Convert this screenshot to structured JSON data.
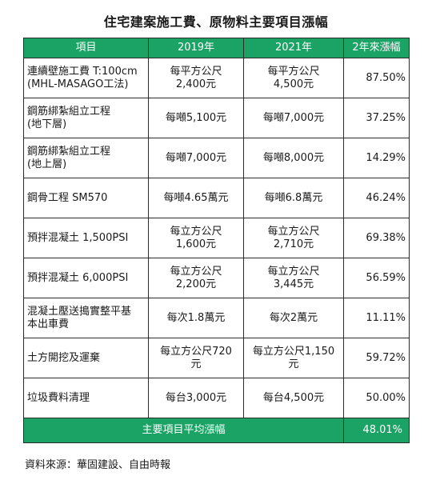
{
  "title": "住宅建案施工費、原物料主要項目漲幅",
  "table": {
    "headers": [
      "項目",
      "2019年",
      "2021年",
      "2年來漲幅"
    ],
    "rows": [
      {
        "item": [
          "連續壁施工費 T:100cm",
          "(MHL-MASAGO工法)"
        ],
        "y2019": [
          "每平方公尺",
          "2,400元"
        ],
        "y2021": [
          "每平方公尺",
          "4,500元"
        ],
        "rate": "87.50%"
      },
      {
        "item": [
          "鋼筋綁紮組立工程",
          "(地下層)"
        ],
        "y2019": [
          "每噸5,100元"
        ],
        "y2021": [
          "每噸7,000元"
        ],
        "rate": "37.25%"
      },
      {
        "item": [
          "鋼筋綁紮組立工程",
          "(地上層)"
        ],
        "y2019": [
          "每噸7,000元"
        ],
        "y2021": [
          "每噸8,000元"
        ],
        "rate": "14.29%"
      },
      {
        "item": [
          "鋼骨工程 SM570"
        ],
        "y2019": [
          "每噸4.65萬元"
        ],
        "y2021": [
          "每噸6.8萬元"
        ],
        "rate": "46.24%"
      },
      {
        "item": [
          "預拌混凝土 1,500PSI"
        ],
        "y2019": [
          "每立方公尺",
          "1,600元"
        ],
        "y2021": [
          "每立方公尺",
          "2,710元"
        ],
        "rate": "69.38%"
      },
      {
        "item": [
          "預拌混凝土 6,000PSI"
        ],
        "y2019": [
          "每立方公尺",
          "2,200元"
        ],
        "y2021": [
          "每立方公尺",
          "3,445元"
        ],
        "rate": "56.59%"
      },
      {
        "item": [
          "混凝土壓送搗實整平基",
          "本出車費"
        ],
        "y2019": [
          "每次1.8萬元"
        ],
        "y2021": [
          "每次2萬元"
        ],
        "rate": "11.11%"
      },
      {
        "item": [
          "土方開挖及運棄"
        ],
        "y2019": [
          "每立方公尺720",
          "元"
        ],
        "y2021": [
          "每立方公尺1,150",
          "元"
        ],
        "rate": "59.72%"
      },
      {
        "item": [
          "垃圾費料清理"
        ],
        "y2019": [
          "每台3,000元"
        ],
        "y2021": [
          "每台4,500元"
        ],
        "rate": "50.00%"
      }
    ],
    "average": {
      "label": "主要項目平均漲幅",
      "value": "48.01%"
    }
  },
  "source": "資料來源：華固建設、自由時報",
  "colors": {
    "header_bg": "#1aa364",
    "header_text": "#ffffff",
    "border": "#2b2b2b"
  }
}
